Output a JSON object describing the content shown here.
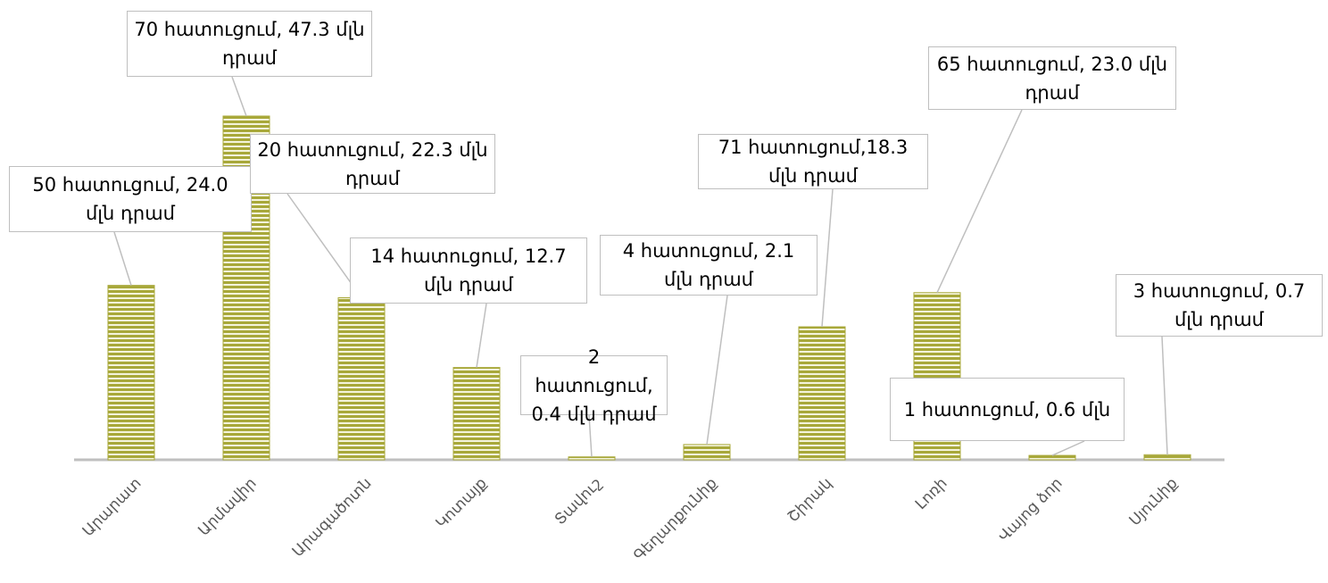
{
  "chart_data": {
    "type": "bar",
    "categories": [
      "Արարատ",
      "Արմավիր",
      "Արագածոտն",
      "Կոտայք",
      "Տավուշ",
      "Գեղարքունիք",
      "Շիրակ",
      "Լոռի",
      "Վայոց ձոր",
      "Սյունիք"
    ],
    "values": [
      24.0,
      47.3,
      22.3,
      12.7,
      0.4,
      2.1,
      18.3,
      23.0,
      0.6,
      0.7
    ],
    "value_labels": [
      "50 հատուցում, 24.0 մլն դրամ",
      "70 հատուցում, 47.3 մլն դրամ",
      "20 հատուցում, 22.3 մլն դրամ",
      "14 հատուցում, 12.7 մլն դրամ",
      "2 հատուցում, 0.4 մլն դրամ",
      "4 հատուցում, 2.1 մլն դրամ",
      "71 հատուցում,18.3 մլն դրամ",
      "65 հատուցում, 23.0 մլն դրամ",
      "1 հատուցում, 0.6 մլն",
      "3 հատուցում, 0.7 մլն դրամ"
    ],
    "color": "#a8a83a"
  }
}
